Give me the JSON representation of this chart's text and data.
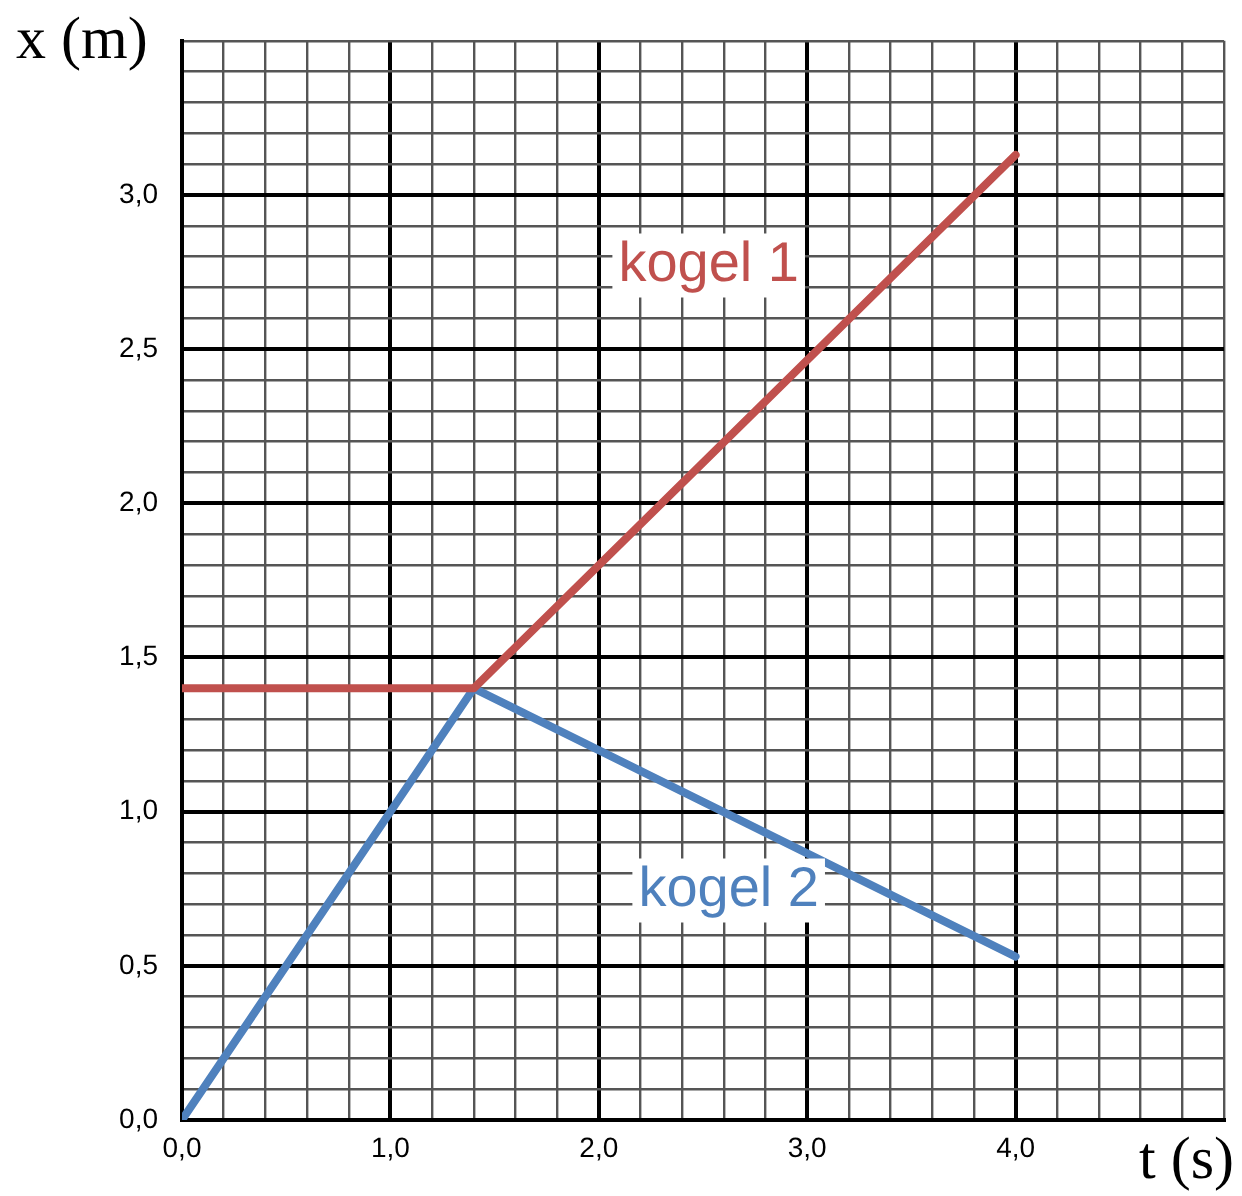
{
  "chart_data": {
    "type": "line",
    "xlabel": "t (s)",
    "ylabel": "x (m)",
    "xlim": [
      0,
      5
    ],
    "ylim": [
      0,
      3.5
    ],
    "xticks": [
      {
        "value": 0,
        "label": "0,0"
      },
      {
        "value": 0.2,
        "label": null
      },
      {
        "value": 0.4,
        "label": null
      },
      {
        "value": 0.6,
        "label": null
      },
      {
        "value": 0.8,
        "label": null
      },
      {
        "value": 1,
        "label": "1,0"
      },
      {
        "value": 1.2,
        "label": null
      },
      {
        "value": 1.4,
        "label": null
      },
      {
        "value": 1.6,
        "label": null
      },
      {
        "value": 1.8,
        "label": null
      },
      {
        "value": 2,
        "label": "2,0"
      },
      {
        "value": 2.2,
        "label": null
      },
      {
        "value": 2.4,
        "label": null
      },
      {
        "value": 2.6,
        "label": null
      },
      {
        "value": 2.8,
        "label": null
      },
      {
        "value": 3,
        "label": "3,0"
      },
      {
        "value": 3.2,
        "label": null
      },
      {
        "value": 3.4,
        "label": null
      },
      {
        "value": 3.6,
        "label": null
      },
      {
        "value": 3.8,
        "label": null
      },
      {
        "value": 4,
        "label": "4,0"
      },
      {
        "value": 4.2,
        "label": null
      },
      {
        "value": 4.4,
        "label": null
      },
      {
        "value": 4.6,
        "label": null
      },
      {
        "value": 4.8,
        "label": null
      },
      {
        "value": 5,
        "label": null
      }
    ],
    "yticks": [
      {
        "value": 0,
        "label": "0,0"
      },
      {
        "value": 0.1,
        "label": null
      },
      {
        "value": 0.2,
        "label": null
      },
      {
        "value": 0.3,
        "label": null
      },
      {
        "value": 0.4,
        "label": null
      },
      {
        "value": 0.5,
        "label": "0,5"
      },
      {
        "value": 0.6,
        "label": null
      },
      {
        "value": 0.7,
        "label": null
      },
      {
        "value": 0.8,
        "label": null
      },
      {
        "value": 0.9,
        "label": null
      },
      {
        "value": 1,
        "label": "1,0"
      },
      {
        "value": 1.1,
        "label": null
      },
      {
        "value": 1.2,
        "label": null
      },
      {
        "value": 1.3,
        "label": null
      },
      {
        "value": 1.4,
        "label": null
      },
      {
        "value": 1.5,
        "label": "1,5"
      },
      {
        "value": 1.6,
        "label": null
      },
      {
        "value": 1.7,
        "label": null
      },
      {
        "value": 1.8,
        "label": null
      },
      {
        "value": 1.9,
        "label": null
      },
      {
        "value": 2,
        "label": "2,0"
      },
      {
        "value": 2.1,
        "label": null
      },
      {
        "value": 2.2,
        "label": null
      },
      {
        "value": 2.3,
        "label": null
      },
      {
        "value": 2.4,
        "label": null
      },
      {
        "value": 2.5,
        "label": "2,5"
      },
      {
        "value": 2.6,
        "label": null
      },
      {
        "value": 2.7,
        "label": null
      },
      {
        "value": 2.8,
        "label": null
      },
      {
        "value": 2.9,
        "label": null
      },
      {
        "value": 3,
        "label": "3,0"
      },
      {
        "value": 3.1,
        "label": null
      },
      {
        "value": 3.2,
        "label": null
      },
      {
        "value": 3.3,
        "label": null
      },
      {
        "value": 3.4,
        "label": null
      },
      {
        "value": 3.5,
        "label": null
      }
    ],
    "grid": true,
    "legend": false,
    "marker": "none",
    "line_style": "solid",
    "series": [
      {
        "name": "kogel 1",
        "color": "#c0504d",
        "x": [
          0,
          1.4,
          4
        ],
        "values": [
          1.4,
          1.4,
          3.13
        ]
      },
      {
        "name": "kogel 2",
        "color": "#4f81bd",
        "x": [
          0,
          1.4,
          4
        ],
        "values": [
          0,
          1.4,
          0.53
        ]
      }
    ]
  }
}
